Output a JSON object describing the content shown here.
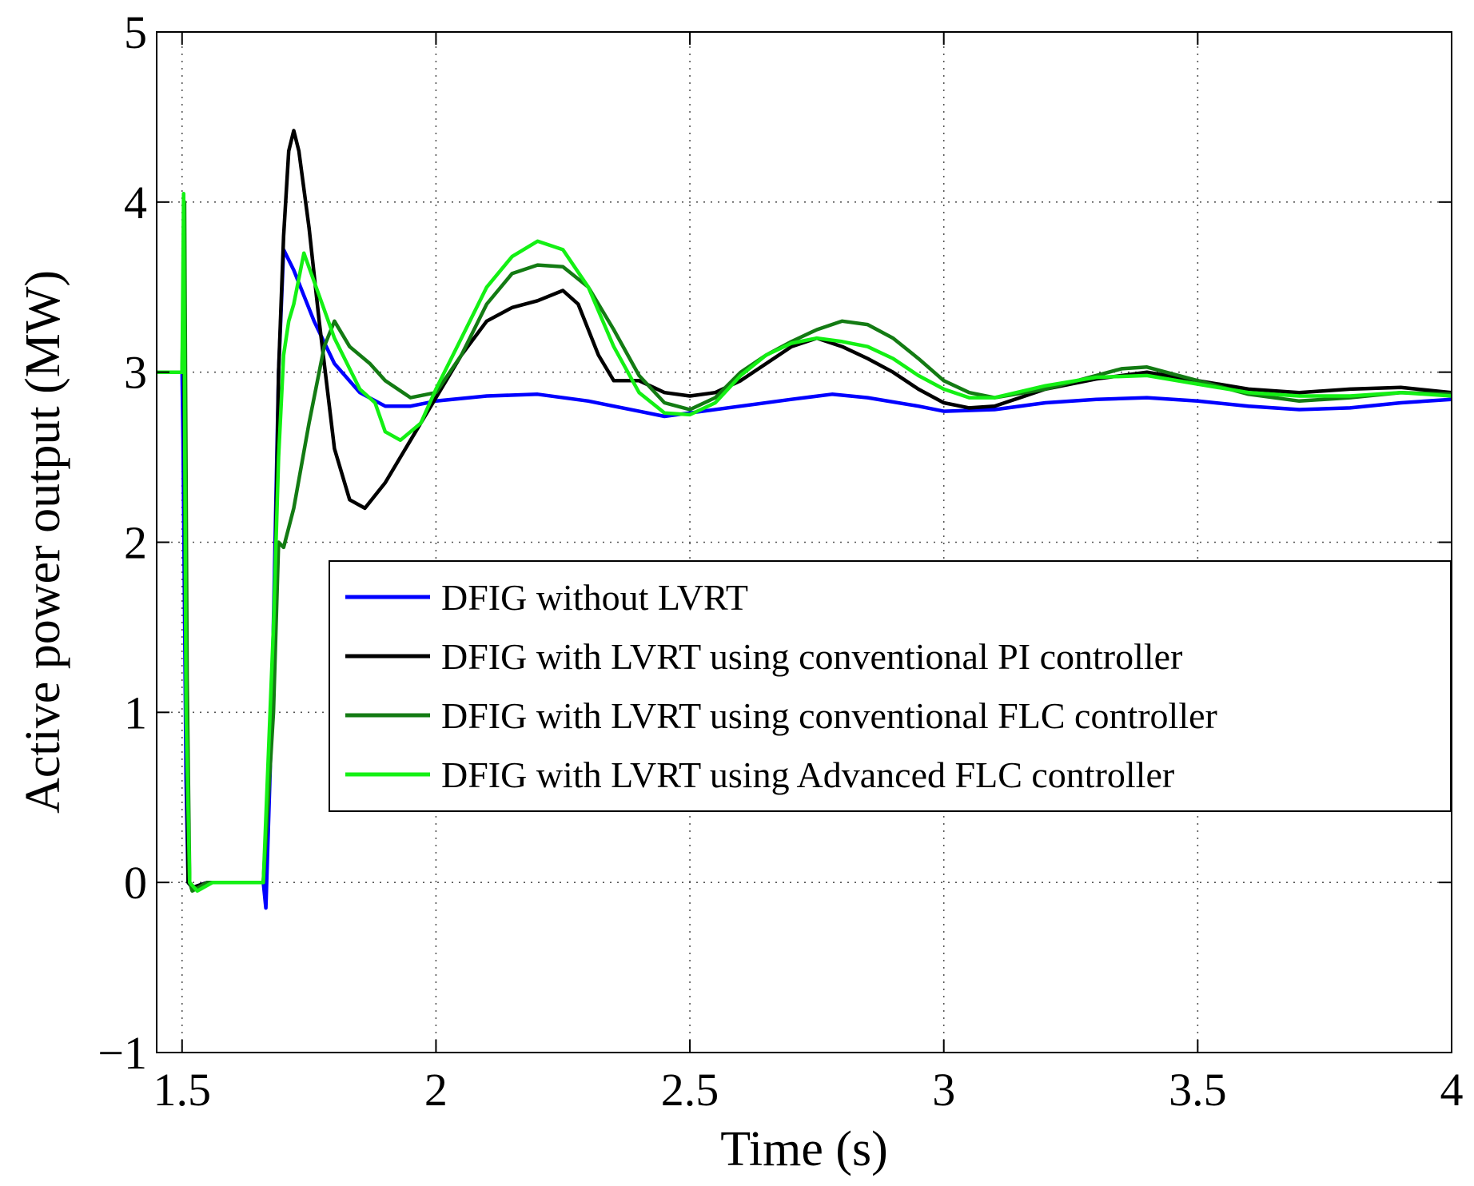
{
  "chart_data": {
    "type": "line",
    "title": "",
    "xlabel": "Time (s)",
    "ylabel": "Active power output (MW)",
    "xlim": [
      1.45,
      4
    ],
    "ylim": [
      -1,
      5
    ],
    "grid": true,
    "legend_position": "lower-right",
    "x_ticks": [
      {
        "value": 1.5,
        "label": "1.5"
      },
      {
        "value": 2,
        "label": "2"
      },
      {
        "value": 2.5,
        "label": "2.5"
      },
      {
        "value": 3,
        "label": "3"
      },
      {
        "value": 3.5,
        "label": "3.5"
      },
      {
        "value": 4,
        "label": "4"
      }
    ],
    "y_ticks": [
      {
        "value": -1,
        "label": "−1"
      },
      {
        "value": 0,
        "label": "0"
      },
      {
        "value": 1,
        "label": "1"
      },
      {
        "value": 2,
        "label": "2"
      },
      {
        "value": 3,
        "label": "3"
      },
      {
        "value": 4,
        "label": "4"
      },
      {
        "value": 5,
        "label": "5"
      }
    ],
    "series": [
      {
        "name": "DFIG without LVRT",
        "color": "#0000ff",
        "points": [
          [
            1.45,
            3.0
          ],
          [
            1.5,
            3.0
          ],
          [
            1.502,
            2.6
          ],
          [
            1.508,
            0.6
          ],
          [
            1.512,
            0.0
          ],
          [
            1.52,
            -0.03
          ],
          [
            1.55,
            0.0
          ],
          [
            1.6,
            0.0
          ],
          [
            1.66,
            0.0
          ],
          [
            1.665,
            -0.15
          ],
          [
            1.675,
            0.8
          ],
          [
            1.69,
            3.0
          ],
          [
            1.7,
            3.72
          ],
          [
            1.72,
            3.6
          ],
          [
            1.76,
            3.3
          ],
          [
            1.8,
            3.05
          ],
          [
            1.85,
            2.88
          ],
          [
            1.9,
            2.8
          ],
          [
            1.95,
            2.8
          ],
          [
            2.0,
            2.83
          ],
          [
            2.1,
            2.86
          ],
          [
            2.2,
            2.87
          ],
          [
            2.3,
            2.83
          ],
          [
            2.4,
            2.77
          ],
          [
            2.45,
            2.74
          ],
          [
            2.5,
            2.76
          ],
          [
            2.6,
            2.8
          ],
          [
            2.7,
            2.84
          ],
          [
            2.78,
            2.87
          ],
          [
            2.85,
            2.85
          ],
          [
            2.95,
            2.8
          ],
          [
            3.0,
            2.77
          ],
          [
            3.1,
            2.78
          ],
          [
            3.2,
            2.82
          ],
          [
            3.3,
            2.84
          ],
          [
            3.4,
            2.85
          ],
          [
            3.5,
            2.83
          ],
          [
            3.6,
            2.8
          ],
          [
            3.7,
            2.78
          ],
          [
            3.8,
            2.79
          ],
          [
            3.9,
            2.82
          ],
          [
            4.0,
            2.84
          ]
        ]
      },
      {
        "name": "DFIG with LVRT using conventional PI controller",
        "color": "#000000",
        "points": [
          [
            1.45,
            3.0
          ],
          [
            1.5,
            3.0
          ],
          [
            1.503,
            3.3
          ],
          [
            1.507,
            1.5
          ],
          [
            1.512,
            0.0
          ],
          [
            1.52,
            -0.03
          ],
          [
            1.55,
            0.0
          ],
          [
            1.6,
            0.0
          ],
          [
            1.66,
            0.0
          ],
          [
            1.68,
            1.2
          ],
          [
            1.69,
            3.0
          ],
          [
            1.7,
            3.8
          ],
          [
            1.71,
            4.3
          ],
          [
            1.72,
            4.42
          ],
          [
            1.73,
            4.3
          ],
          [
            1.75,
            3.85
          ],
          [
            1.77,
            3.3
          ],
          [
            1.8,
            2.55
          ],
          [
            1.83,
            2.25
          ],
          [
            1.86,
            2.2
          ],
          [
            1.9,
            2.35
          ],
          [
            1.95,
            2.6
          ],
          [
            2.0,
            2.85
          ],
          [
            2.05,
            3.1
          ],
          [
            2.1,
            3.3
          ],
          [
            2.15,
            3.38
          ],
          [
            2.2,
            3.42
          ],
          [
            2.25,
            3.48
          ],
          [
            2.28,
            3.4
          ],
          [
            2.32,
            3.1
          ],
          [
            2.35,
            2.95
          ],
          [
            2.4,
            2.95
          ],
          [
            2.45,
            2.88
          ],
          [
            2.5,
            2.86
          ],
          [
            2.55,
            2.88
          ],
          [
            2.6,
            2.95
          ],
          [
            2.65,
            3.05
          ],
          [
            2.7,
            3.15
          ],
          [
            2.75,
            3.2
          ],
          [
            2.8,
            3.15
          ],
          [
            2.85,
            3.08
          ],
          [
            2.9,
            3.0
          ],
          [
            2.95,
            2.9
          ],
          [
            3.0,
            2.82
          ],
          [
            3.05,
            2.79
          ],
          [
            3.1,
            2.8
          ],
          [
            3.15,
            2.85
          ],
          [
            3.2,
            2.9
          ],
          [
            3.3,
            2.96
          ],
          [
            3.4,
            3.0
          ],
          [
            3.5,
            2.95
          ],
          [
            3.6,
            2.9
          ],
          [
            3.7,
            2.88
          ],
          [
            3.8,
            2.9
          ],
          [
            3.9,
            2.91
          ],
          [
            4.0,
            2.88
          ]
        ]
      },
      {
        "name": "DFIG with LVRT using conventional FLC controller",
        "color": "#137b13",
        "points": [
          [
            1.45,
            3.0
          ],
          [
            1.5,
            3.0
          ],
          [
            1.505,
            4.0
          ],
          [
            1.51,
            1.2
          ],
          [
            1.515,
            0.0
          ],
          [
            1.52,
            -0.05
          ],
          [
            1.55,
            0.0
          ],
          [
            1.6,
            0.0
          ],
          [
            1.66,
            0.0
          ],
          [
            1.68,
            1.0
          ],
          [
            1.69,
            2.0
          ],
          [
            1.7,
            1.97
          ],
          [
            1.72,
            2.2
          ],
          [
            1.75,
            2.7
          ],
          [
            1.78,
            3.15
          ],
          [
            1.8,
            3.3
          ],
          [
            1.83,
            3.15
          ],
          [
            1.87,
            3.05
          ],
          [
            1.9,
            2.95
          ],
          [
            1.95,
            2.85
          ],
          [
            2.0,
            2.88
          ],
          [
            2.05,
            3.1
          ],
          [
            2.1,
            3.4
          ],
          [
            2.15,
            3.58
          ],
          [
            2.2,
            3.63
          ],
          [
            2.25,
            3.62
          ],
          [
            2.3,
            3.5
          ],
          [
            2.35,
            3.25
          ],
          [
            2.4,
            2.98
          ],
          [
            2.45,
            2.82
          ],
          [
            2.5,
            2.78
          ],
          [
            2.55,
            2.85
          ],
          [
            2.6,
            3.0
          ],
          [
            2.65,
            3.1
          ],
          [
            2.7,
            3.18
          ],
          [
            2.75,
            3.25
          ],
          [
            2.8,
            3.3
          ],
          [
            2.85,
            3.28
          ],
          [
            2.9,
            3.2
          ],
          [
            2.95,
            3.08
          ],
          [
            3.0,
            2.95
          ],
          [
            3.05,
            2.88
          ],
          [
            3.1,
            2.85
          ],
          [
            3.2,
            2.9
          ],
          [
            3.3,
            2.98
          ],
          [
            3.35,
            3.02
          ],
          [
            3.4,
            3.03
          ],
          [
            3.5,
            2.95
          ],
          [
            3.6,
            2.87
          ],
          [
            3.7,
            2.83
          ],
          [
            3.8,
            2.85
          ],
          [
            3.9,
            2.88
          ],
          [
            4.0,
            2.87
          ]
        ]
      },
      {
        "name": "DFIG with LVRT using Advanced FLC controller",
        "color": "#14f014",
        "points": [
          [
            1.45,
            3.0
          ],
          [
            1.5,
            3.0
          ],
          [
            1.503,
            4.05
          ],
          [
            1.508,
            1.0
          ],
          [
            1.515,
            0.0
          ],
          [
            1.53,
            -0.05
          ],
          [
            1.56,
            0.0
          ],
          [
            1.6,
            0.0
          ],
          [
            1.66,
            0.0
          ],
          [
            1.68,
            1.5
          ],
          [
            1.69,
            2.5
          ],
          [
            1.7,
            3.1
          ],
          [
            1.71,
            3.3
          ],
          [
            1.72,
            3.4
          ],
          [
            1.74,
            3.7
          ],
          [
            1.77,
            3.45
          ],
          [
            1.8,
            3.2
          ],
          [
            1.85,
            2.9
          ],
          [
            1.88,
            2.82
          ],
          [
            1.9,
            2.65
          ],
          [
            1.93,
            2.6
          ],
          [
            1.97,
            2.7
          ],
          [
            2.0,
            2.9
          ],
          [
            2.05,
            3.2
          ],
          [
            2.1,
            3.5
          ],
          [
            2.15,
            3.68
          ],
          [
            2.2,
            3.77
          ],
          [
            2.25,
            3.72
          ],
          [
            2.3,
            3.5
          ],
          [
            2.35,
            3.15
          ],
          [
            2.4,
            2.88
          ],
          [
            2.45,
            2.76
          ],
          [
            2.5,
            2.75
          ],
          [
            2.55,
            2.82
          ],
          [
            2.6,
            2.98
          ],
          [
            2.65,
            3.1
          ],
          [
            2.7,
            3.17
          ],
          [
            2.75,
            3.2
          ],
          [
            2.8,
            3.18
          ],
          [
            2.85,
            3.15
          ],
          [
            2.9,
            3.08
          ],
          [
            2.95,
            2.98
          ],
          [
            3.0,
            2.9
          ],
          [
            3.05,
            2.85
          ],
          [
            3.1,
            2.85
          ],
          [
            3.2,
            2.92
          ],
          [
            3.3,
            2.97
          ],
          [
            3.4,
            2.98
          ],
          [
            3.5,
            2.93
          ],
          [
            3.6,
            2.88
          ],
          [
            3.7,
            2.86
          ],
          [
            3.8,
            2.86
          ],
          [
            3.9,
            2.88
          ],
          [
            4.0,
            2.86
          ]
        ]
      }
    ]
  }
}
